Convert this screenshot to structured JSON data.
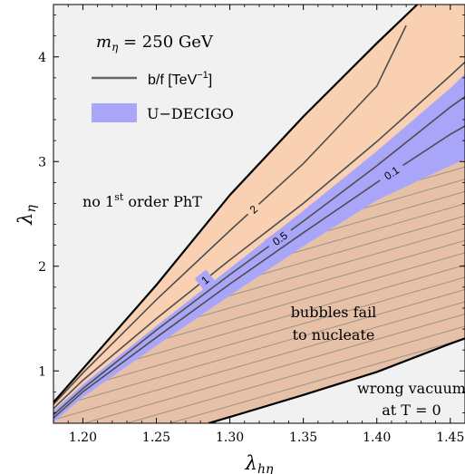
{
  "chart_data": {
    "type": "contour",
    "xlabel": "λ_hη",
    "ylabel": "λ_η",
    "xlim": [
      1.18,
      1.46
    ],
    "ylim": [
      0.5,
      4.5
    ],
    "x_ticks": [
      1.2,
      1.25,
      1.3,
      1.35,
      1.4,
      1.45
    ],
    "x_tick_labels": [
      "1.20",
      "1.25",
      "1.30",
      "1.35",
      "1.40",
      "1.45"
    ],
    "y_ticks": [
      1,
      2,
      3,
      4
    ],
    "y_tick_labels": [
      "1",
      "2",
      "3",
      "4"
    ],
    "legend": {
      "title": "m_η = 250 GeV",
      "title_main": "m",
      "title_sub": "η",
      "title_value": " = 250 GeV",
      "entries": [
        {
          "label_main": "b/f [TeV",
          "label_sup": "−1",
          "label_end": "]",
          "style": "line",
          "color": "#666666"
        },
        {
          "label": "U−DECIGO",
          "style": "fill",
          "color": "#A9A6FA"
        }
      ],
      "position": "top-left"
    },
    "regions": [
      {
        "name": "no 1st order PhT",
        "label_main": "no 1",
        "label_sup": "st",
        "label_end": " order PhT",
        "color": "#F1F1F1"
      },
      {
        "name": "first-order window",
        "color": "#F9D0B2"
      },
      {
        "name": "U-DECIGO",
        "color": "#A9A6FA"
      },
      {
        "name": "bubbles fail to nucleate",
        "label_line1": "bubbles fail",
        "label_line2": "to nucleate",
        "color": "#E6C1A7",
        "hatched": true
      },
      {
        "name": "wrong vacuum at T = 0",
        "label_line1": "wrong vacuum",
        "label_line2": "at T = 0",
        "color": "#F1F1F1"
      }
    ],
    "boundaries": {
      "upper": {
        "x": [
          1.18,
          1.25,
          1.3,
          1.35,
          1.4,
          1.4275
        ],
        "y": [
          0.7,
          1.82,
          2.68,
          3.43,
          4.13,
          4.5
        ]
      },
      "nucleation": {
        "x": [
          1.18,
          1.2,
          1.25,
          1.3,
          1.35,
          1.4,
          1.45,
          1.46
        ],
        "y": [
          0.51,
          0.75,
          1.24,
          1.72,
          2.19,
          2.63,
          2.96,
          3.02
        ]
      },
      "vacuum": {
        "x": [
          1.2855,
          1.3,
          1.35,
          1.4,
          1.45,
          1.46
        ],
        "y": [
          0.5,
          0.56,
          0.77,
          0.99,
          1.26,
          1.31
        ]
      },
      "decigo_upper": {
        "x": [
          1.18,
          1.2,
          1.25,
          1.3,
          1.35,
          1.4,
          1.45,
          1.46
        ],
        "y": [
          0.62,
          0.87,
          1.43,
          1.98,
          2.53,
          3.1,
          3.7,
          3.84
        ]
      }
    },
    "series": [
      {
        "name": "2",
        "label": "2",
        "label_x": 1.316,
        "x": [
          1.18,
          1.2,
          1.25,
          1.3,
          1.35,
          1.4,
          1.42
        ],
        "y": [
          0.68,
          0.98,
          1.68,
          2.34,
          2.98,
          3.72,
          4.3
        ]
      },
      {
        "name": "1",
        "label": "1",
        "label_x": 1.283,
        "x": [
          1.18,
          1.2,
          1.25,
          1.3,
          1.35,
          1.4,
          1.45,
          1.46
        ],
        "y": [
          0.64,
          0.91,
          1.5,
          2.06,
          2.6,
          3.19,
          3.82,
          3.95
        ]
      },
      {
        "name": "0.5",
        "label": "0.5",
        "label_x": 1.334,
        "x": [
          1.18,
          1.2,
          1.25,
          1.3,
          1.35,
          1.4,
          1.45,
          1.46
        ],
        "y": [
          0.58,
          0.83,
          1.39,
          1.92,
          2.43,
          2.96,
          3.52,
          3.62
        ]
      },
      {
        "name": "0.1",
        "label": "0.1",
        "label_x": 1.41,
        "x": [
          1.18,
          1.2,
          1.25,
          1.3,
          1.35,
          1.4,
          1.45,
          1.46
        ],
        "y": [
          0.55,
          0.8,
          1.32,
          1.83,
          2.32,
          2.8,
          3.26,
          3.34
        ]
      }
    ]
  }
}
